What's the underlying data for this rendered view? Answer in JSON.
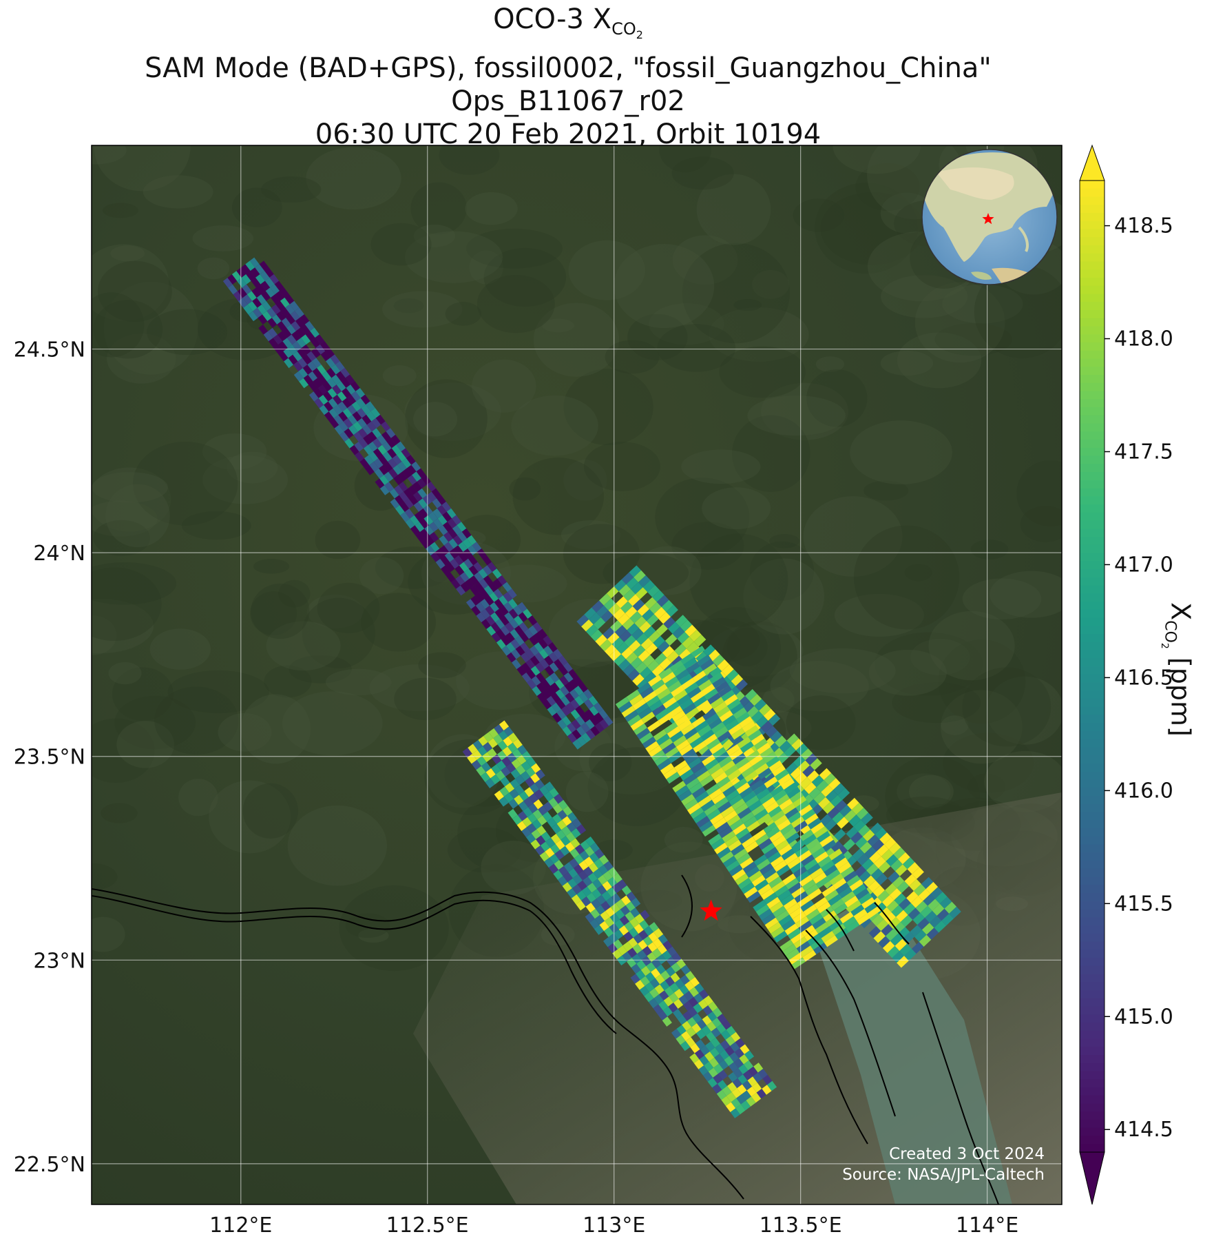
{
  "title": {
    "line1_prefix": "OCO-3 X",
    "line1_sub": "CO",
    "line1_sub2": "2",
    "line2": "SAM Mode (BAD+GPS), fossil0002, \"fossil_Guangzhou_China\"",
    "line3": "Ops_B11067_r02",
    "line4": "06:30 UTC 20 Feb 2021, Orbit 10194"
  },
  "map": {
    "lon_ticks": [
      "112°E",
      "112.5°E",
      "113°E",
      "113.5°E",
      "114°E"
    ],
    "lat_ticks": [
      "24.5°N",
      "24°N",
      "23.5°N",
      "23°N",
      "22.5°N"
    ],
    "lon_values": [
      112.0,
      112.5,
      113.0,
      113.5,
      114.0
    ],
    "lat_values": [
      24.5,
      24.0,
      23.5,
      23.0,
      22.5
    ],
    "lon_range": [
      111.6,
      114.2
    ],
    "lat_range": [
      22.4,
      25.0
    ],
    "target_name": "fossil_Guangzhou_China",
    "target_marker": "red-star",
    "target_lon": 113.26,
    "target_lat": 23.12,
    "basemap": "satellite imagery",
    "inset": "orthographic globe centered on East Asia with red star marker"
  },
  "colorbar": {
    "label_prefix": "X",
    "label_sub": "CO",
    "label_sub2": "2",
    "label_suffix": " [ppm]",
    "colormap": "viridis",
    "min": 414.4,
    "max": 418.7,
    "ticks": [
      "418.5",
      "418.0",
      "417.5",
      "417.0",
      "416.5",
      "416.0",
      "415.5",
      "415.0",
      "414.5"
    ],
    "tick_values": [
      418.5,
      418.0,
      417.5,
      417.0,
      416.5,
      416.0,
      415.5,
      415.0,
      414.5
    ],
    "extend": "both"
  },
  "credit": {
    "line1": "Created 3 Oct 2024",
    "line2": "Source: NASA/JPL-Caltech"
  }
}
